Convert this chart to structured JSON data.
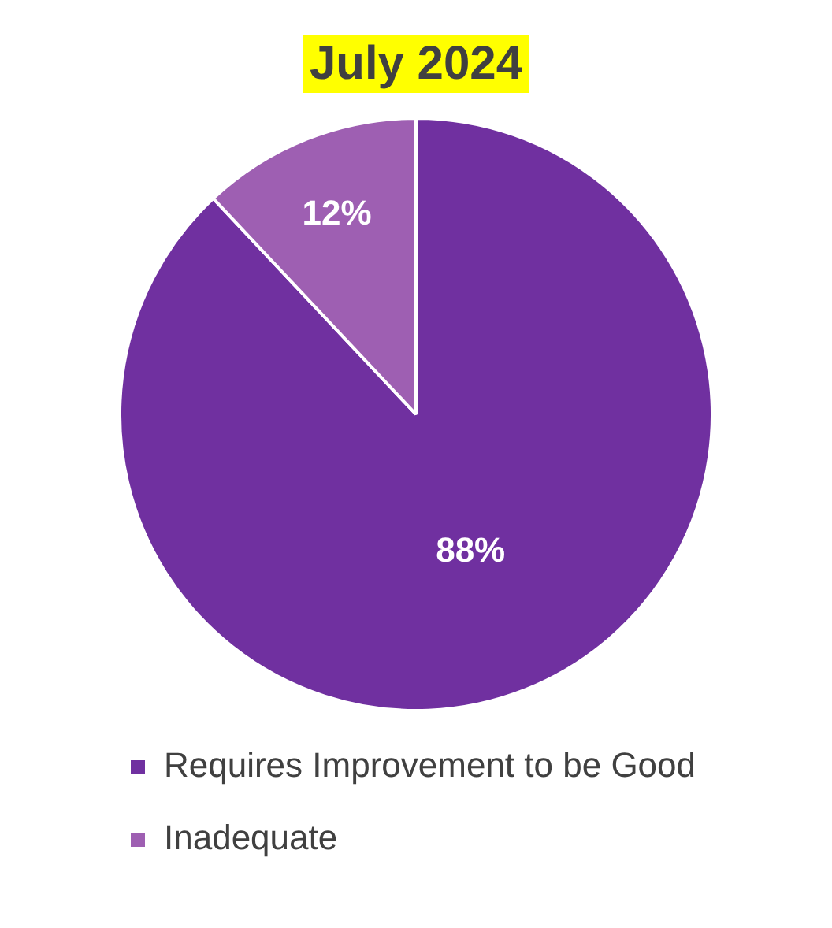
{
  "chart_data": {
    "type": "pie",
    "title": "July 2024",
    "categories": [
      "Requires Improvement to be Good",
      "Inadequate"
    ],
    "values": [
      88,
      12
    ],
    "colors": [
      "#7030a0",
      "#9e5fb2"
    ],
    "value_labels": [
      "88%",
      "12%"
    ],
    "legend": "bottom"
  }
}
